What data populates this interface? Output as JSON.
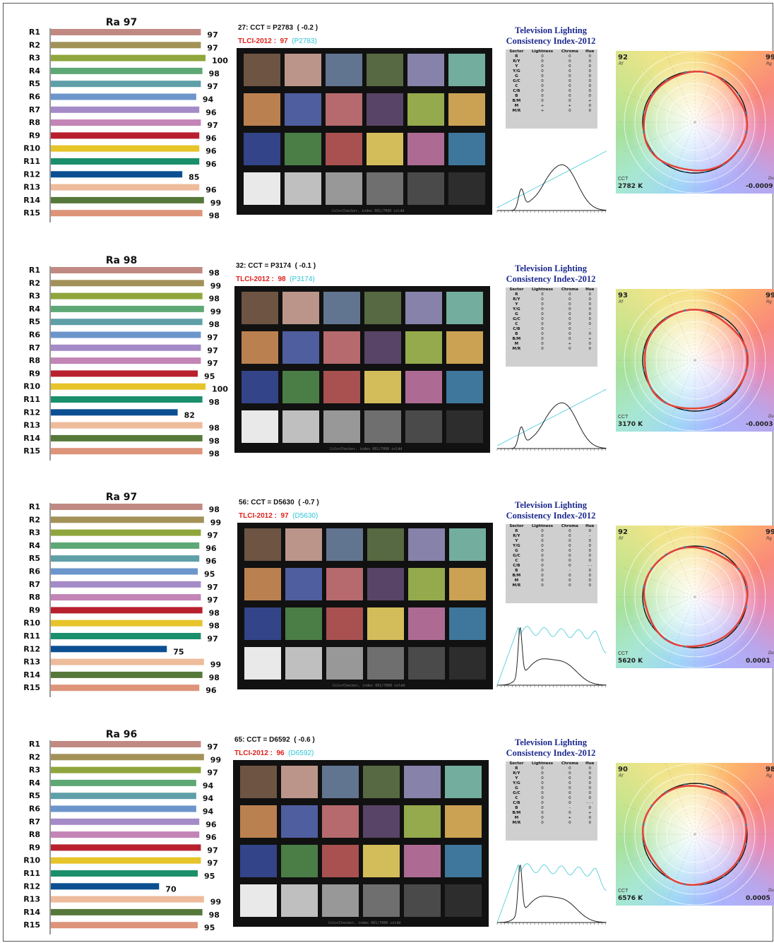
{
  "chart_data": [
    {
      "type": "bar",
      "title": "Ra 97",
      "categories": [
        "R1",
        "R2",
        "R3",
        "R4",
        "R5",
        "R6",
        "R7",
        "R8",
        "R9",
        "R10",
        "R11",
        "R12",
        "R13",
        "R14",
        "R15"
      ],
      "values": [
        97,
        97,
        100,
        98,
        97,
        94,
        96,
        97,
        96,
        96,
        96,
        85,
        96,
        99,
        98
      ],
      "colorchecker": {
        "header": "27: CCT = P2783  ( -0.2 )",
        "tlci_label": "TLCI-2012 :",
        "tlci_value": "97",
        "tlci_ref": "(P2783)",
        "footer": "ColorChecker, index 001/7000 coldd"
      },
      "tlci": {
        "title_line1": "Television Lighting",
        "title_line2": "Consistency Index-2012",
        "columns": [
          "Sector",
          "Lightness",
          "Chroma",
          "Hue"
        ],
        "rows": [
          [
            "R",
            "0",
            "0",
            "0"
          ],
          [
            "R/Y",
            "0",
            "0",
            "0"
          ],
          [
            "Y",
            "0",
            "0",
            "0"
          ],
          [
            "Y/G",
            "0",
            "0",
            "0"
          ],
          [
            "G",
            "0",
            "0",
            "0"
          ],
          [
            "G/C",
            "0",
            "0",
            "0"
          ],
          [
            "C",
            "0",
            "0",
            "0"
          ],
          [
            "C/B",
            "0",
            "0",
            "0"
          ],
          [
            "B",
            "0",
            "0",
            "0"
          ],
          [
            "B/M",
            "0",
            "0",
            "+"
          ],
          [
            "M",
            "+",
            "+",
            "0"
          ],
          [
            "M/R",
            "+",
            "0",
            "0"
          ]
        ]
      },
      "polar": {
        "rf": "92",
        "rg": "99",
        "cct_label": "CCT",
        "cct": "2782 K",
        "duv": "-0.0009",
        "rf_sub": "Rf",
        "rg_sub": "Rg",
        "duv_sub": "Duv"
      }
    },
    {
      "type": "bar",
      "title": "Ra 98",
      "categories": [
        "R1",
        "R2",
        "R3",
        "R4",
        "R5",
        "R6",
        "R7",
        "R8",
        "R9",
        "R10",
        "R11",
        "R12",
        "R13",
        "R14",
        "R15"
      ],
      "values": [
        98,
        99,
        98,
        99,
        98,
        97,
        97,
        97,
        95,
        100,
        98,
        82,
        98,
        98,
        98
      ],
      "colorchecker": {
        "header": "32: CCT = P3174  ( -0.1 )",
        "tlci_label": "TLCI-2012 :",
        "tlci_value": "98",
        "tlci_ref": "(P3174)",
        "footer": "ColorChecker, index 001/7000 coldd"
      },
      "tlci": {
        "title_line1": "Television Lighting",
        "title_line2": "Consistency Index-2012",
        "columns": [
          "Sector",
          "Lightness",
          "Chroma",
          "Hue"
        ],
        "rows": [
          [
            "R",
            "0",
            "0",
            "0"
          ],
          [
            "R/Y",
            "0",
            "0",
            "0"
          ],
          [
            "Y",
            "0",
            "0",
            "0"
          ],
          [
            "Y/G",
            "0",
            "0",
            "0"
          ],
          [
            "G",
            "0",
            "0",
            "0"
          ],
          [
            "G/C",
            "0",
            "0",
            "0"
          ],
          [
            "C",
            "0",
            "0",
            "0"
          ],
          [
            "C/B",
            "0",
            "0",
            "-"
          ],
          [
            "B",
            "0",
            "0",
            "0"
          ],
          [
            "B/M",
            "0",
            "0",
            "+"
          ],
          [
            "M",
            "0",
            "+",
            "0"
          ],
          [
            "M/R",
            "0",
            "0",
            "0"
          ]
        ]
      },
      "polar": {
        "rf": "93",
        "rg": "99",
        "cct_label": "CCT",
        "cct": "3170 K",
        "duv": "-0.0003",
        "rf_sub": "Rf",
        "rg_sub": "Rg",
        "duv_sub": "Duv"
      }
    },
    {
      "type": "bar",
      "title": "Ra 97",
      "categories": [
        "R1",
        "R2",
        "R3",
        "R4",
        "R5",
        "R6",
        "R7",
        "R8",
        "R9",
        "R10",
        "R11",
        "R12",
        "R13",
        "R14",
        "R15"
      ],
      "values": [
        98,
        99,
        97,
        96,
        96,
        95,
        97,
        97,
        98,
        98,
        97,
        75,
        99,
        98,
        96
      ],
      "colorchecker": {
        "header": "56: CCT = D5630  ( -0.7 )",
        "tlci_label": "TLCI-2012 :",
        "tlci_value": "97",
        "tlci_ref": "(D5630)",
        "footer": "ColorChecker, index 001/7000 coldd"
      },
      "tlci": {
        "title_line1": "Television Lighting",
        "title_line2": "Consistency Index-2012",
        "columns": [
          "Sector",
          "Lightness",
          "Chroma",
          "Hue"
        ],
        "rows": [
          [
            "R",
            "0",
            "0",
            "0"
          ],
          [
            "R/Y",
            "0",
            "0",
            "-"
          ],
          [
            "Y",
            "0",
            "0",
            "0"
          ],
          [
            "Y/G",
            "0",
            "0",
            "0"
          ],
          [
            "G",
            "0",
            "0",
            "0"
          ],
          [
            "G/C",
            "0",
            "0",
            "0"
          ],
          [
            "C",
            "0",
            "0",
            "0"
          ],
          [
            "C/B",
            "0",
            "0",
            "- -"
          ],
          [
            "B",
            "0",
            "-",
            "0"
          ],
          [
            "B/M",
            "0",
            "0",
            "0"
          ],
          [
            "M",
            "0",
            "0",
            "0"
          ],
          [
            "M/R",
            "0",
            "0",
            "0"
          ]
        ]
      },
      "polar": {
        "rf": "92",
        "rg": "99",
        "cct_label": "CCT",
        "cct": "5620 K",
        "duv": "0.0001",
        "rf_sub": "Rf",
        "rg_sub": "Rg",
        "duv_sub": "Duv"
      }
    },
    {
      "type": "bar",
      "title": "Ra 96",
      "categories": [
        "R1",
        "R2",
        "R3",
        "R4",
        "R5",
        "R6",
        "R7",
        "R8",
        "R9",
        "R10",
        "R11",
        "R12",
        "R13",
        "R14",
        "R15"
      ],
      "values": [
        97,
        99,
        97,
        94,
        94,
        94,
        96,
        96,
        97,
        97,
        95,
        70,
        99,
        98,
        95
      ],
      "colorchecker": {
        "header": "65: CCT = D6592  ( -0.6 )",
        "tlci_label": "TLCI-2012 :",
        "tlci_value": "96",
        "tlci_ref": "(D6592)",
        "footer": "ColorChecker, index 001/7000 coldd"
      },
      "tlci": {
        "title_line1": "Television Lighting",
        "title_line2": "Consistency Index-2012",
        "columns": [
          "Sector",
          "Lightness",
          "Chroma",
          "Hue"
        ],
        "rows": [
          [
            "R",
            "0",
            "0",
            "0"
          ],
          [
            "R/Y",
            "0",
            "0",
            "0"
          ],
          [
            "Y",
            "0",
            "0",
            "0"
          ],
          [
            "Y/G",
            "0",
            "0",
            "0"
          ],
          [
            "G",
            "0",
            "0",
            "0"
          ],
          [
            "G/C",
            "0",
            "0",
            "0"
          ],
          [
            "C",
            "0",
            "0",
            "0"
          ],
          [
            "C/B",
            "0",
            "0",
            "- - -"
          ],
          [
            "B",
            "0",
            "-",
            "0"
          ],
          [
            "B/M",
            "0",
            "0",
            "+"
          ],
          [
            "M",
            "0",
            "+",
            "0"
          ],
          [
            "M/R",
            "0",
            "0",
            "0"
          ]
        ]
      },
      "polar": {
        "rf": "90",
        "rg": "98",
        "cct_label": "CCT",
        "cct": "6576 K",
        "duv": "0.0005",
        "rf_sub": "Rf",
        "rg_sub": "Rg",
        "duv_sub": "Duv"
      }
    }
  ],
  "bar_colors": [
    "#c08a82",
    "#a39258",
    "#8ea63c",
    "#5ea875",
    "#5e9fa8",
    "#6c95cc",
    "#a48bc7",
    "#c384b6",
    "#b8202e",
    "#e6c42a",
    "#1a8f6c",
    "#0b4f92",
    "#eebb9b",
    "#56783a",
    "#dd9479"
  ],
  "patch_colors": [
    "#6e5443",
    "#bb958a",
    "#627590",
    "#566942",
    "#8682aa",
    "#73ad9d",
    "#bb8050",
    "#4f5e9e",
    "#b66a6e",
    "#584466",
    "#94aa4c",
    "#cba253",
    "#334488",
    "#4b7d46",
    "#a85150",
    "#d3bd5a",
    "#ad6b94",
    "#3e779b",
    "#e9e9e9",
    "#bfbfbf",
    "#989898",
    "#6f6f6f",
    "#4a4a4a",
    "#2d2d2d"
  ],
  "spd_curves": [
    {
      "kind": "warm"
    },
    {
      "kind": "warm2"
    },
    {
      "kind": "daylight"
    },
    {
      "kind": "daylight2"
    }
  ]
}
